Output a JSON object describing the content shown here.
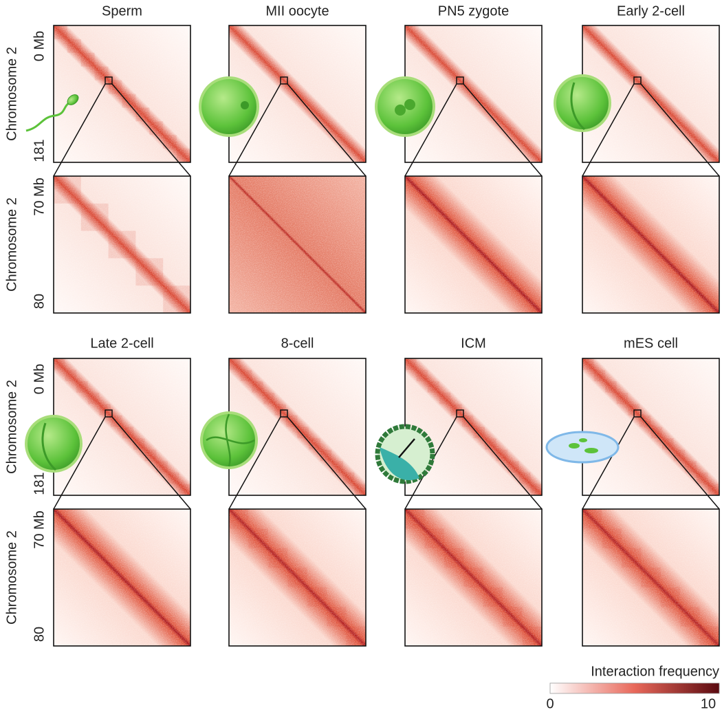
{
  "panels": [
    {
      "title": "Sperm"
    },
    {
      "title": "MII oocyte"
    },
    {
      "title": "PN5 zygote"
    },
    {
      "title": "Early 2-cell"
    },
    {
      "title": "Late 2-cell"
    },
    {
      "title": "8-cell"
    },
    {
      "title": "ICM"
    },
    {
      "title": "mES cell"
    }
  ],
  "rows": [
    {
      "overview_axis": {
        "label": "Chromosome 2",
        "start": "0 Mb",
        "end": "181"
      },
      "zoom_axis": {
        "label": "Chromosome 2",
        "start": "70 Mb",
        "end": "80"
      }
    },
    {
      "overview_axis": {
        "label": "Chromosome 2",
        "start": "0 Mb",
        "end": "181"
      },
      "zoom_axis": {
        "label": "Chromosome 2",
        "start": "70 Mb",
        "end": "80"
      }
    }
  ],
  "colorbar": {
    "title": "Interaction frequency",
    "min": 0,
    "max": 10
  }
}
